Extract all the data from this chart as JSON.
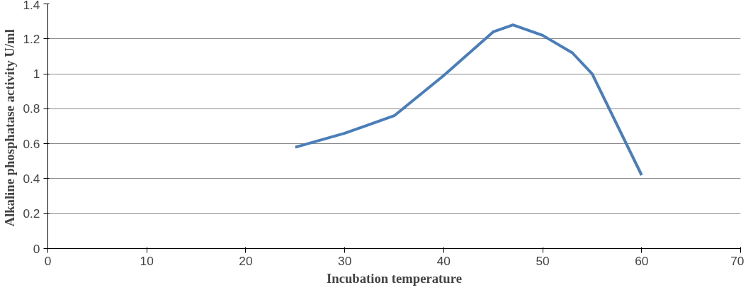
{
  "chart_data": {
    "type": "line",
    "xlabel": "Incubation temperature",
    "ylabel": "Alkaline phosphatase activity  U/ml",
    "x": [
      25,
      30,
      35,
      40,
      45,
      47,
      50,
      53,
      55,
      60
    ],
    "series": [
      {
        "color": "#4a7ebb",
        "values": [
          0.58,
          0.66,
          0.76,
          0.99,
          1.24,
          1.28,
          1.22,
          1.12,
          1.0,
          0.42
        ]
      }
    ],
    "xlim": [
      0,
      70
    ],
    "xticks": [
      0,
      10,
      20,
      30,
      40,
      50,
      60,
      70
    ],
    "ylim": [
      0,
      1.4
    ],
    "yticks": [
      0,
      0.2,
      0.4,
      0.6,
      0.8,
      1,
      1.2,
      1.4
    ],
    "grid": "y"
  }
}
